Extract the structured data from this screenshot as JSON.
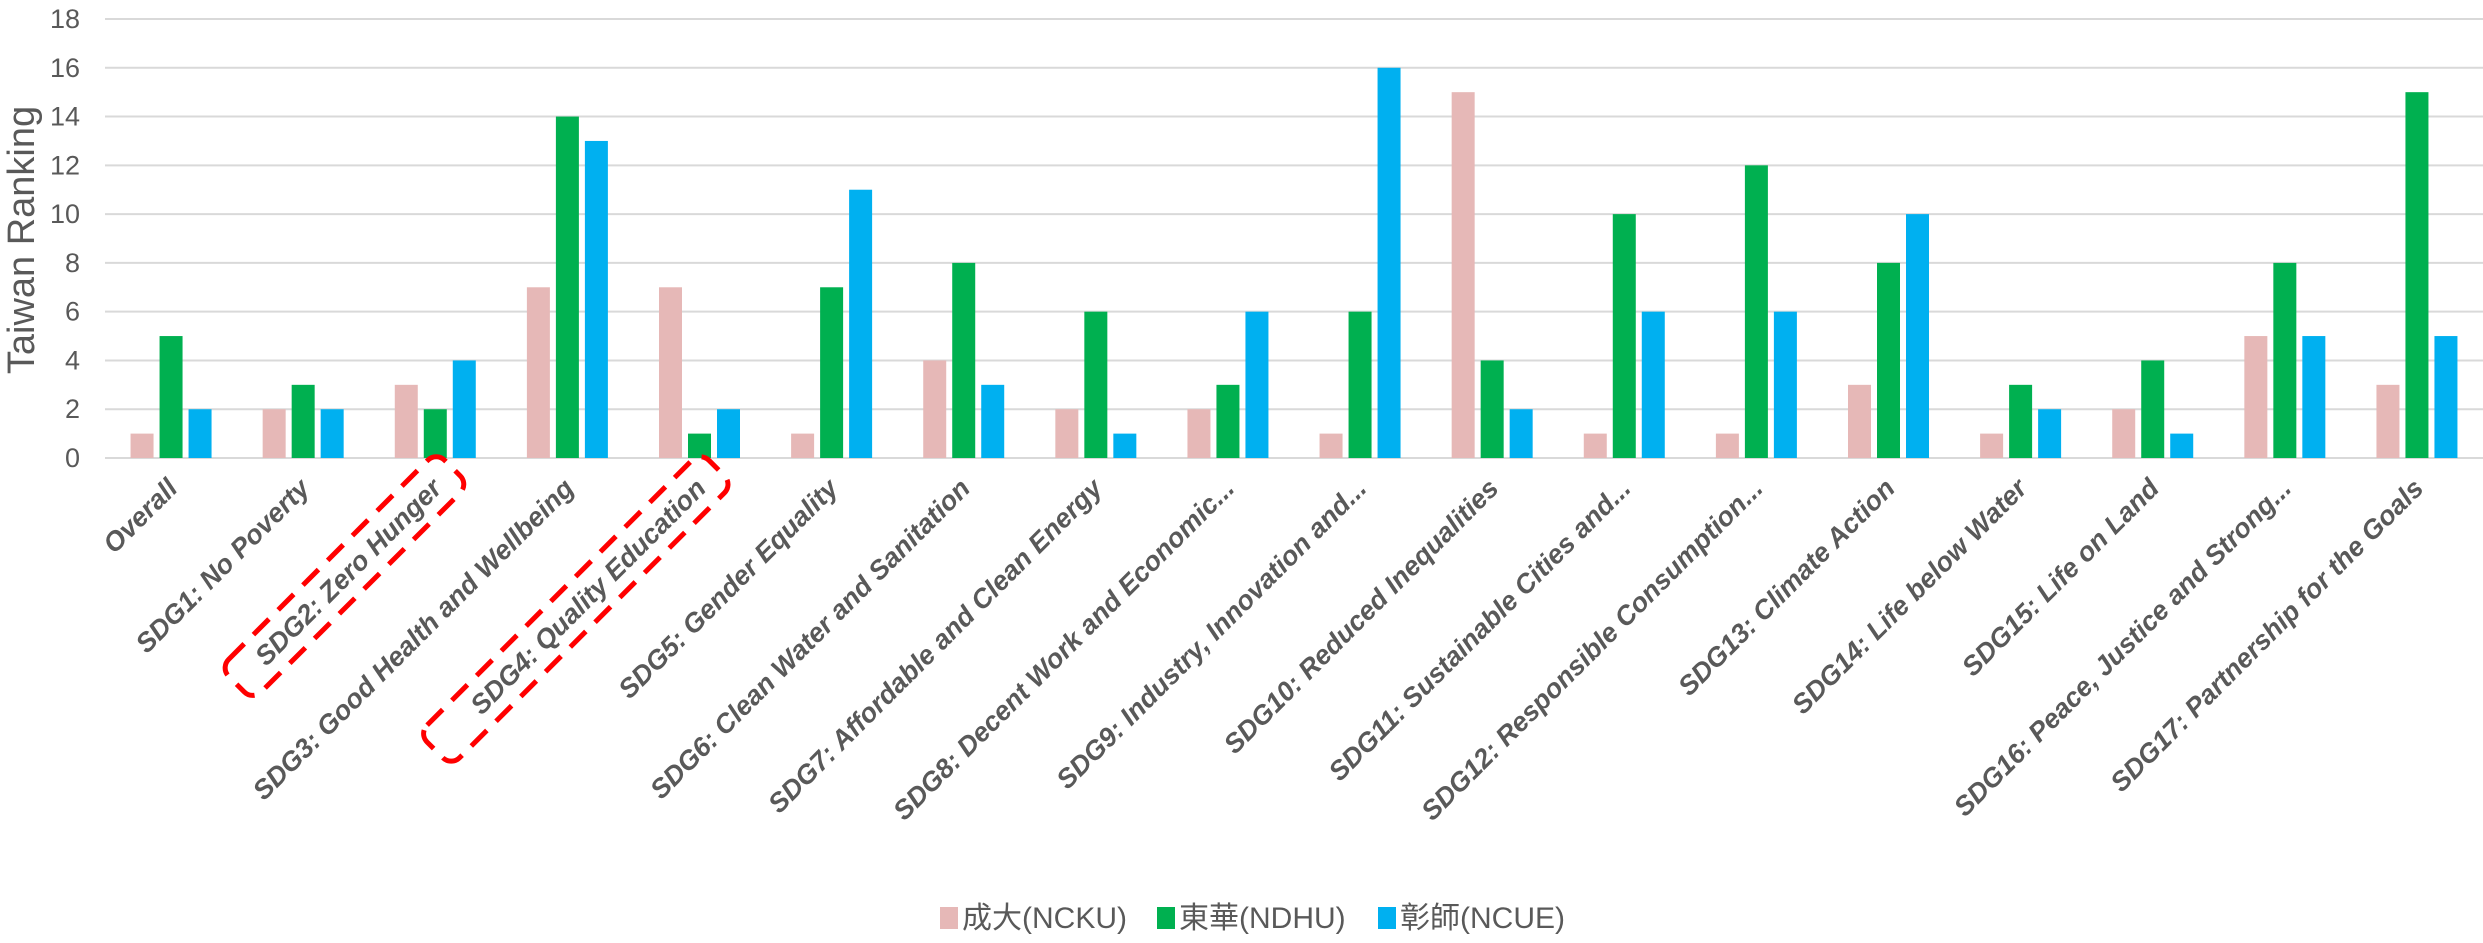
{
  "chart_data": {
    "type": "bar",
    "ylabel": "Taiwan Ranking",
    "ylim": [
      0,
      18
    ],
    "yticks": [
      0,
      2,
      4,
      6,
      8,
      10,
      12,
      14,
      16,
      18
    ],
    "grid": true,
    "legend_position": "bottom",
    "categories": [
      "Overall",
      "SDG1: No Poverty",
      "SDG2: Zero Hunger",
      "SDG3: Good Health and Wellbeing",
      "SDG4: Quality Education",
      "SDG5: Gender Equality",
      "SDG6: Clean Water and Sanitation",
      "SDG7: Affordable and Clean Energy",
      "SDG8: Decent Work and Economic...",
      "SDG9: Industry, Innovation and...",
      "SDG10: Reduced Inequalities",
      "SDG11: Sustainable Cities and...",
      "SDG12: Responsible Consumption...",
      "SDG13: Climate Action",
      "SDG14: Life below Water",
      "SDG15: Life on Land",
      "SDG16: Peace, Justice and Strong...",
      "SDG17: Partnership for the Goals"
    ],
    "highlighted_categories": [
      "SDG2: Zero Hunger",
      "SDG4: Quality Education"
    ],
    "series": [
      {
        "name": "成大(NCKU)",
        "color": "#e6b8b7",
        "values": [
          1,
          2,
          3,
          7,
          7,
          1,
          4,
          2,
          2,
          1,
          15,
          1,
          1,
          3,
          1,
          2,
          5,
          3
        ]
      },
      {
        "name": "東華(NDHU)",
        "color": "#00b050",
        "values": [
          5,
          3,
          2,
          14,
          1,
          7,
          8,
          6,
          3,
          6,
          4,
          10,
          12,
          8,
          3,
          4,
          8,
          15
        ]
      },
      {
        "name": "彰師(NCUE)",
        "color": "#00b0f0",
        "values": [
          2,
          2,
          4,
          13,
          2,
          11,
          3,
          1,
          6,
          16,
          2,
          6,
          6,
          10,
          2,
          1,
          5,
          5
        ]
      }
    ],
    "highlight_color": "#ff0000"
  }
}
